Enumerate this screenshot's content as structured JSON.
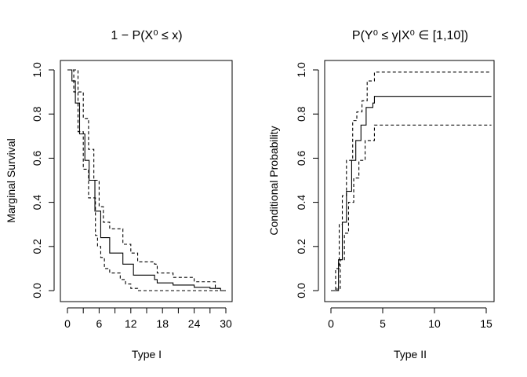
{
  "chart_data": [
    {
      "type": "line",
      "title": "1 − P(X⁰ ≤ x)",
      "xlabel": "Type I",
      "ylabel": "Marginal Survival",
      "xlim": [
        0,
        30
      ],
      "ylim": [
        0,
        1
      ],
      "xticks": [
        0,
        3,
        6,
        9,
        12,
        15,
        18,
        21,
        24,
        27,
        30
      ],
      "xtick_labels": [
        "0",
        "",
        "6",
        "",
        "12",
        "",
        "18",
        "",
        "24",
        "",
        "30"
      ],
      "yticks": [
        0,
        0.2,
        0.4,
        0.6,
        0.8,
        1.0
      ],
      "ytick_labels": [
        "0.0",
        "0.2",
        "0.4",
        "0.6",
        "0.8",
        "1.0"
      ],
      "grid": false,
      "series": [
        {
          "style": "solid",
          "x": [
            0,
            0.3,
            0.85,
            1.5,
            2.3,
            3.3,
            4.1,
            5.2,
            6.3,
            8,
            10.5,
            12.5,
            16.5,
            17,
            20,
            24,
            27,
            29,
            30
          ],
          "y": [
            1,
            1,
            0.95,
            0.85,
            0.71,
            0.59,
            0.5,
            0.36,
            0.24,
            0.17,
            0.12,
            0.07,
            0.05,
            0.035,
            0.025,
            0.015,
            0.01,
            0,
            0
          ]
        },
        {
          "style": "dashed",
          "x": [
            0,
            1.5,
            2,
            3,
            4,
            5,
            6,
            6.8,
            8,
            10.5,
            12,
            13.3,
            16.5,
            17,
            20,
            24,
            28,
            29,
            30
          ],
          "y": [
            1,
            1,
            0.9,
            0.78,
            0.64,
            0.5,
            0.38,
            0.31,
            0.28,
            0.21,
            0.17,
            0.13,
            0.12,
            0.08,
            0.06,
            0.04,
            0.01,
            0,
            0
          ]
        },
        {
          "style": "dashed",
          "x": [
            0,
            0.8,
            1.2,
            2,
            3,
            4,
            5.3,
            5.7,
            6.3,
            7,
            8,
            10,
            11,
            12,
            13.3,
            30
          ],
          "y": [
            1,
            1,
            0.9,
            0.72,
            0.55,
            0.42,
            0.25,
            0.2,
            0.15,
            0.1,
            0.08,
            0.05,
            0.03,
            0.01,
            0,
            0
          ]
        }
      ]
    },
    {
      "type": "line",
      "title": "P(Y⁰ ≤ y|X⁰ ∈ [1,10])",
      "xlabel": "Type II",
      "ylabel": "Conditional Probability",
      "xlim": [
        0,
        15.5
      ],
      "ylim": [
        0,
        1
      ],
      "xticks": [
        0,
        5,
        10,
        15
      ],
      "xtick_labels": [
        "0",
        "5",
        "10",
        "15"
      ],
      "yticks": [
        0,
        0.2,
        0.4,
        0.6,
        0.8,
        1.0
      ],
      "ytick_labels": [
        "0.0",
        "0.2",
        "0.4",
        "0.6",
        "0.8",
        "1.0"
      ],
      "grid": false,
      "series": [
        {
          "style": "solid",
          "x": [
            0,
            0.36,
            0.73,
            1.1,
            1.5,
            2.0,
            2.4,
            2.9,
            3.4,
            4.05,
            4.2,
            15.5
          ],
          "y": [
            0,
            0,
            0.14,
            0.31,
            0.45,
            0.59,
            0.68,
            0.75,
            0.83,
            0.85,
            0.88,
            0.88
          ]
        },
        {
          "style": "dashed",
          "x": [
            0,
            0.3,
            0.45,
            0.8,
            1.1,
            1.5,
            2.1,
            2.5,
            3.0,
            3.5,
            4.2,
            15.5
          ],
          "y": [
            0,
            0,
            0.1,
            0.3,
            0.43,
            0.59,
            0.77,
            0.81,
            0.86,
            0.95,
            0.99,
            0.99
          ]
        },
        {
          "style": "dashed",
          "x": [
            0,
            0.6,
            0.9,
            1.3,
            1.7,
            2.2,
            2.7,
            3.3,
            4.2,
            15.5
          ],
          "y": [
            0,
            0.01,
            0.14,
            0.26,
            0.4,
            0.51,
            0.59,
            0.68,
            0.75,
            0.75
          ]
        }
      ]
    }
  ]
}
